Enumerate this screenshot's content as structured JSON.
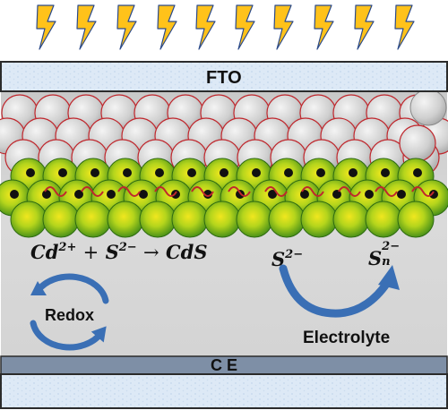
{
  "labels": {
    "fto": "FTO",
    "ce": "C E",
    "electrolyte": "Electrolyte",
    "redox": "Redox"
  },
  "equation": {
    "cd": "Cd",
    "cd_charge": "2+",
    "plus": "+",
    "s": "S",
    "s_charge": "2−",
    "arrow": "→",
    "product": "CdS"
  },
  "polysulfide": {
    "left_symbol": "S",
    "left_charge": "2−",
    "right_symbol": "S",
    "right_charge": "2−",
    "right_subscript": "n"
  },
  "colors": {
    "lightning": "#ffc21a",
    "lightning_edge": "#2b4a8a",
    "fto_fill": "#dde9f6",
    "electrolyte": "#d6d6d6",
    "grey_sphere": "#c9c9c9",
    "grey_sphere_edge": "#c0272d",
    "green_sphere": "#9ccc1c",
    "cds_dot": "#111111",
    "ce_bar": "#7e8fa6",
    "arrow_blue": "#3a6fb5"
  },
  "icons": [
    "lightning-bolt-icon",
    "redox-cycle-icon",
    "polysulfide-arrow-icon"
  ]
}
